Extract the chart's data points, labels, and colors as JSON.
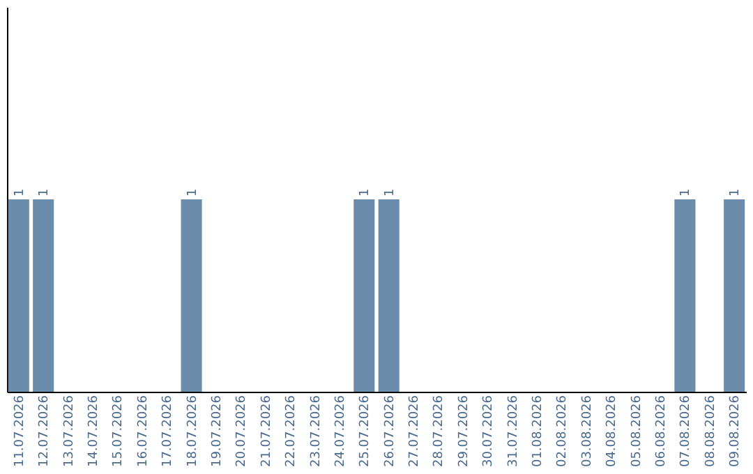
{
  "chart_data": {
    "type": "bar",
    "categories": [
      "11.07.2026",
      "12.07.2026",
      "13.07.2026",
      "14.07.2026",
      "15.07.2026",
      "16.07.2026",
      "17.07.2026",
      "18.07.2026",
      "19.07.2026",
      "20.07.2026",
      "21.07.2026",
      "22.07.2026",
      "23.07.2026",
      "24.07.2026",
      "25.07.2026",
      "26.07.2026",
      "27.07.2026",
      "28.07.2026",
      "29.07.2026",
      "30.07.2026",
      "31.07.2026",
      "01.08.2026",
      "02.08.2026",
      "03.08.2026",
      "04.08.2026",
      "05.08.2026",
      "06.08.2026",
      "07.08.2026",
      "08.08.2026",
      "09.08.2026"
    ],
    "values": [
      1,
      1,
      0,
      0,
      0,
      0,
      0,
      1,
      0,
      0,
      0,
      0,
      0,
      0,
      1,
      1,
      0,
      0,
      0,
      0,
      0,
      0,
      0,
      0,
      0,
      0,
      0,
      1,
      0,
      1
    ],
    "color": "#6b8cab",
    "ylim": [
      0,
      2
    ],
    "value_labels": [
      "1",
      "1",
      null,
      null,
      null,
      null,
      null,
      "1",
      null,
      null,
      null,
      null,
      null,
      null,
      "1",
      "1",
      null,
      null,
      null,
      null,
      null,
      null,
      null,
      null,
      null,
      null,
      null,
      "1",
      null,
      "1"
    ],
    "tick_labels": "x",
    "grid": false
  }
}
